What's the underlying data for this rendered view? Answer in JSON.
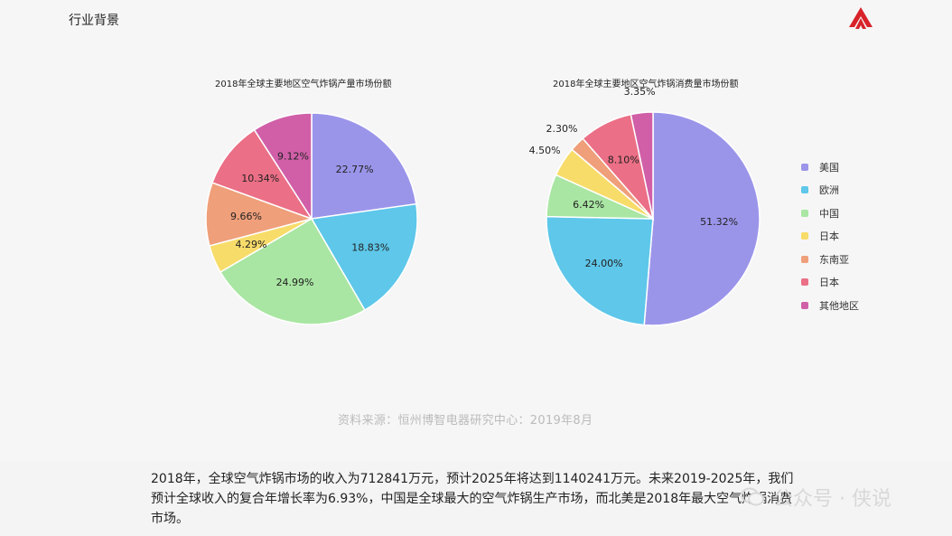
{
  "header": {
    "section_title": "行业背景"
  },
  "chart_data": [
    {
      "type": "pie",
      "title": "2018年全球主要地区空气炸锅产量市场份额",
      "categories": [
        "美国",
        "欧洲",
        "中国",
        "日本",
        "东南亚",
        "日本",
        "其他地区"
      ],
      "values": [
        22.77,
        18.83,
        24.99,
        4.29,
        9.66,
        10.34,
        9.12
      ],
      "labels": [
        "22.77%",
        "18.83%",
        "24.99%",
        "4.29%",
        "9.66%",
        "10.34%",
        "9.12%"
      ],
      "unit": "%"
    },
    {
      "type": "pie",
      "title": "2018年全球主要地区空气炸锅消费量市场份额",
      "categories": [
        "美国",
        "欧洲",
        "中国",
        "日本",
        "东南亚",
        "日本",
        "其他地区"
      ],
      "values": [
        51.32,
        24.0,
        6.42,
        4.5,
        2.3,
        8.1,
        3.35
      ],
      "labels": [
        "51.32%",
        "24.00%",
        "6.42%",
        "4.50%",
        "2.30%",
        "8.10%",
        "3.35%"
      ],
      "unit": "%"
    }
  ],
  "legend": {
    "placement": "right",
    "items": [
      {
        "label": "美国",
        "color": "#9b95ea"
      },
      {
        "label": "欧洲",
        "color": "#5ec7ea"
      },
      {
        "label": "中国",
        "color": "#a9e6a3"
      },
      {
        "label": "日本",
        "color": "#f7dc6a"
      },
      {
        "label": "东南亚",
        "color": "#ef9f7a"
      },
      {
        "label": "日本",
        "color": "#eb6f86"
      },
      {
        "label": "其他地区",
        "color": "#d05fa8"
      }
    ]
  },
  "colors": [
    "#9b95ea",
    "#5ec7ea",
    "#a9e6a3",
    "#f7dc6a",
    "#ef9f7a",
    "#eb6f86",
    "#d05fa8"
  ],
  "source": "资料来源：恒州博智电器研究中心：2019年8月",
  "caption": {
    "line1": "2018年，全球空气炸锅市场的收入为712841万元，预计2025年将达到1140241万元。未来2019-2025年，我们",
    "line2": "预计全球收入的复合年增长率为6.93%，中国是全球最大的空气炸锅生产市场，而北美是2018年最大空气炸锅消费",
    "line3": "市场。"
  },
  "watermark": {
    "text": "公众号 · 侠说"
  }
}
